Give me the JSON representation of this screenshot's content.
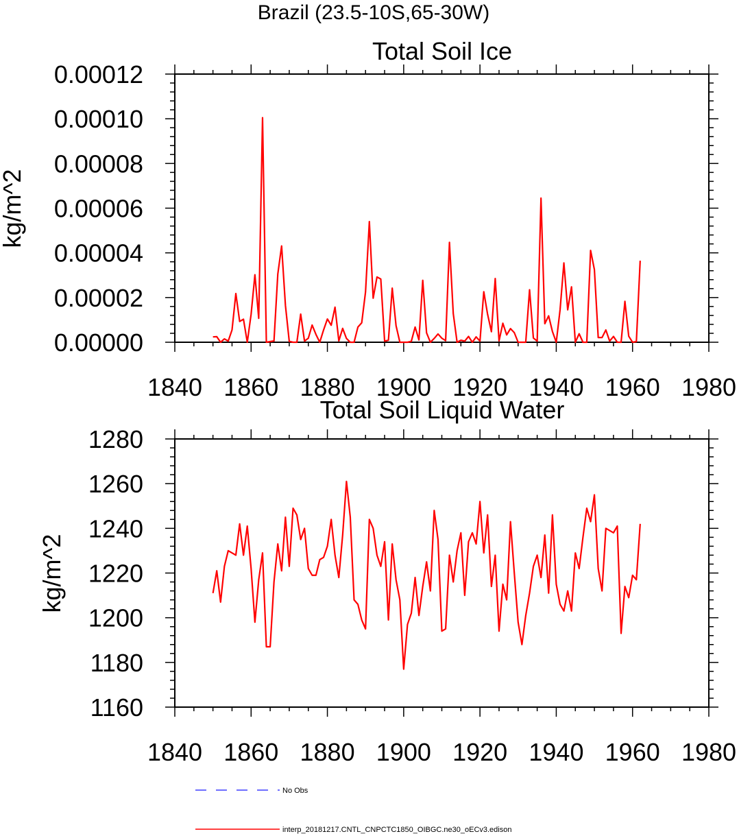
{
  "figure": {
    "suptitle": "Brazil (23.5-10S,65-30W)"
  },
  "chart_data": [
    {
      "type": "line",
      "title": "Total Soil Ice",
      "xlabel": "",
      "ylabel": "kg/m^2",
      "xlim": [
        1840,
        1980
      ],
      "ylim": [
        0,
        0.00012
      ],
      "xticks": [
        1840,
        1860,
        1880,
        1900,
        1920,
        1940,
        1960,
        1980
      ],
      "xtick_labels": [
        "1840",
        "1860",
        "1880",
        "1900",
        "1920",
        "1940",
        "1960",
        "1980"
      ],
      "yticks": [
        0,
        2e-05,
        4e-05,
        6e-05,
        8e-05,
        0.0001,
        0.00012
      ],
      "ytick_labels": [
        "0.00000",
        "0.00002",
        "0.00004",
        "0.00006",
        "0.00008",
        "0.00010",
        "0.00012"
      ],
      "grid": false,
      "series": [
        {
          "name": "interp_20181217.CNTL_CNPCTC1850_OIBGC.ne30_oECv3.edison",
          "color": "#ff0000",
          "x": [
            1850,
            1851,
            1852,
            1853,
            1854,
            1855,
            1856,
            1857,
            1858,
            1859,
            1860,
            1861,
            1862,
            1863,
            1864,
            1865,
            1866,
            1867,
            1868,
            1869,
            1870,
            1871,
            1872,
            1873,
            1874,
            1875,
            1876,
            1877,
            1878,
            1879,
            1880,
            1881,
            1882,
            1883,
            1884,
            1885,
            1886,
            1887,
            1888,
            1889,
            1890,
            1891,
            1892,
            1893,
            1894,
            1895,
            1896,
            1897,
            1898,
            1899,
            1900,
            1901,
            1902,
            1903,
            1904,
            1905,
            1906,
            1907,
            1908,
            1909,
            1910,
            1911,
            1912,
            1913,
            1914,
            1915,
            1916,
            1917,
            1918,
            1919,
            1920,
            1921,
            1922,
            1923,
            1924,
            1925,
            1926,
            1927,
            1928,
            1929,
            1930,
            1931,
            1932,
            1933,
            1934,
            1935,
            1936,
            1937,
            1938,
            1939,
            1940,
            1941,
            1942,
            1943,
            1944,
            1945,
            1946,
            1947,
            1948,
            1949,
            1950,
            1951,
            1952,
            1953,
            1954,
            1955,
            1956,
            1957,
            1958,
            1959,
            1960,
            1961,
            1962
          ],
          "values": [
            2.4e-06,
            2.5e-06,
            0.0,
            1.5e-06,
            5e-07,
            5.5e-06,
            2.18e-05,
            9.3e-06,
            1.03e-05,
            0.0,
            1.25e-05,
            3.02e-05,
            1.07e-05,
            0.0001005,
            0.0,
            3e-07,
            6e-07,
            3.05e-05,
            4.31e-05,
            1.65e-05,
            4e-07,
            0.0,
            0.0,
            1.26e-05,
            5e-07,
            1.8e-06,
            7.7e-06,
            3.5e-06,
            0.0,
            5.5e-06,
            1.04e-05,
            7.6e-06,
            1.57e-05,
            6e-07,
            6.2e-06,
            1.7e-06,
            0.0,
            0.0,
            6.8e-06,
            8.7e-06,
            2.25e-05,
            5.4e-05,
            1.97e-05,
            2.92e-05,
            2.83e-05,
            5e-07,
            9e-07,
            2.42e-05,
            7.4e-06,
            0.0,
            0.0,
            0.0,
            4e-07,
            6.8e-06,
            1e-06,
            2.77e-05,
            4.2e-06,
            0.0,
            1.7e-06,
            3.7e-06,
            1.8e-06,
            7e-07,
            4.47e-05,
            1.28e-05,
            0.0,
            9e-07,
            5e-07,
            2.6e-06,
            0.0,
            2.4e-06,
            5e-07,
            2.26e-05,
            1.25e-05,
            4.7e-06,
            2.85e-05,
            6e-07,
            8.5e-06,
            3.3e-06,
            6.1e-06,
            4.3e-06,
            0.0,
            0.0,
            0.0,
            2.35e-05,
            1.9e-06,
            5e-07,
            6.45e-05,
            8.3e-06,
            1.18e-05,
            4.8e-06,
            0.0,
            1.45e-05,
            3.55e-05,
            1.45e-05,
            2.48e-05,
            0.0,
            3.8e-06,
            0.0,
            0.0,
            4.11e-05,
            3.25e-05,
            2.1e-06,
            2.1e-06,
            5.5e-06,
            5e-07,
            2.6e-06,
            0.0,
            0.0,
            1.83e-05,
            2.7e-06,
            0.0,
            3e-07,
            3.65e-05
          ]
        }
      ]
    },
    {
      "type": "line",
      "title": "Total Soil Liquid Water",
      "xlabel": "",
      "ylabel": "kg/m^2",
      "xlim": [
        1840,
        1980
      ],
      "ylim": [
        1160,
        1280
      ],
      "xticks": [
        1840,
        1860,
        1880,
        1900,
        1920,
        1940,
        1960,
        1980
      ],
      "xtick_labels": [
        "1840",
        "1860",
        "1880",
        "1900",
        "1920",
        "1940",
        "1960",
        "1980"
      ],
      "yticks": [
        1160,
        1180,
        1200,
        1220,
        1240,
        1260,
        1280
      ],
      "ytick_labels": [
        "1160",
        "1180",
        "1200",
        "1220",
        "1240",
        "1260",
        "1280"
      ],
      "grid": false,
      "series": [
        {
          "name": "interp_20181217.CNTL_CNPCTC1850_OIBGC.ne30_oECv3.edison",
          "color": "#ff0000",
          "x": [
            1850,
            1851,
            1852,
            1853,
            1854,
            1855,
            1856,
            1857,
            1858,
            1859,
            1860,
            1861,
            1862,
            1863,
            1864,
            1865,
            1866,
            1867,
            1868,
            1869,
            1870,
            1871,
            1872,
            1873,
            1874,
            1875,
            1876,
            1877,
            1878,
            1879,
            1880,
            1881,
            1882,
            1883,
            1884,
            1885,
            1886,
            1887,
            1888,
            1889,
            1890,
            1891,
            1892,
            1893,
            1894,
            1895,
            1896,
            1897,
            1898,
            1899,
            1900,
            1901,
            1902,
            1903,
            1904,
            1905,
            1906,
            1907,
            1908,
            1909,
            1910,
            1911,
            1912,
            1913,
            1914,
            1915,
            1916,
            1917,
            1918,
            1919,
            1920,
            1921,
            1922,
            1923,
            1924,
            1925,
            1926,
            1927,
            1928,
            1929,
            1930,
            1931,
            1932,
            1933,
            1934,
            1935,
            1936,
            1937,
            1938,
            1939,
            1940,
            1941,
            1942,
            1943,
            1944,
            1945,
            1946,
            1947,
            1948,
            1949,
            1950,
            1951,
            1952,
            1953,
            1954,
            1955,
            1956,
            1957,
            1958,
            1959,
            1960,
            1961,
            1962
          ],
          "values": [
            1211,
            1221,
            1207,
            1223,
            1230,
            1229,
            1228,
            1242,
            1228,
            1241,
            1222,
            1198,
            1217,
            1229,
            1187,
            1187,
            1216,
            1233,
            1221,
            1245,
            1223,
            1249,
            1246,
            1235,
            1240,
            1222,
            1219,
            1219,
            1226,
            1227,
            1232,
            1244,
            1228,
            1218,
            1237,
            1261,
            1245,
            1208,
            1206,
            1199,
            1195,
            1244,
            1240,
            1228,
            1223,
            1234,
            1199,
            1233,
            1217,
            1208,
            1177,
            1197,
            1202,
            1218,
            1201,
            1214,
            1225,
            1212,
            1248,
            1235,
            1194,
            1195,
            1228,
            1216,
            1230,
            1238,
            1210,
            1234,
            1238,
            1233,
            1252,
            1229,
            1246,
            1214,
            1228,
            1194,
            1215,
            1208,
            1243,
            1220,
            1198,
            1188,
            1201,
            1211,
            1223,
            1228,
            1218,
            1237,
            1211,
            1246,
            1215,
            1206,
            1203,
            1212,
            1203,
            1229,
            1222,
            1236,
            1249,
            1243,
            1255,
            1222,
            1212,
            1240,
            1239,
            1238,
            1241,
            1193,
            1214,
            1209,
            1219,
            1217,
            1242
          ]
        }
      ]
    }
  ],
  "legend": {
    "placement": "bottom",
    "entries": [
      {
        "label": "No Obs",
        "color": "#3f3fff",
        "style": "dashed"
      },
      {
        "label": "interp_20181217.CNTL_CNPCTC1850_OIBGC.ne30_oECv3.edison",
        "color": "#ff0000",
        "style": "solid"
      }
    ]
  }
}
